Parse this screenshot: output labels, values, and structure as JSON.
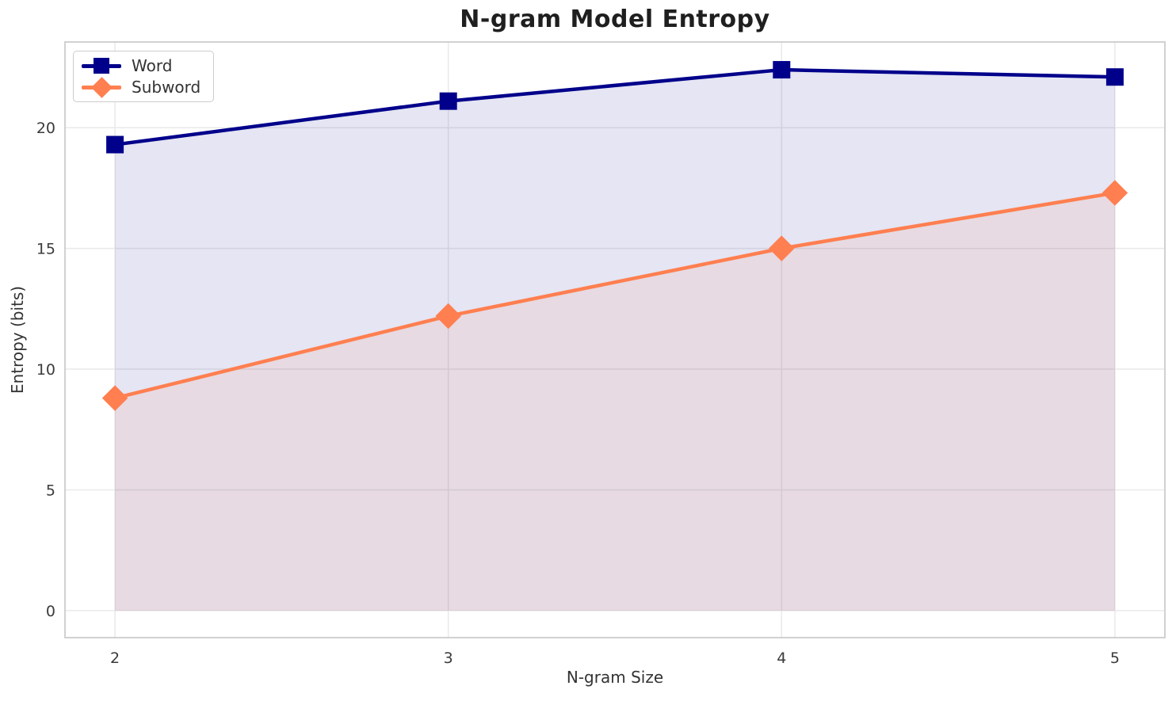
{
  "chart_data": {
    "type": "line",
    "title": "N-gram Model Entropy",
    "xlabel": "N-gram Size",
    "ylabel": "Entropy (bits)",
    "x": [
      2,
      3,
      4,
      5
    ],
    "xticks": [
      2,
      3,
      4,
      5
    ],
    "yticks": [
      0,
      5,
      10,
      15,
      20
    ],
    "xlim": [
      1.85,
      5.15
    ],
    "ylim": [
      -1.12,
      23.55
    ],
    "grid": true,
    "legend_position": "upper-left",
    "background_color": "#ffffff",
    "gridline_color": "#e9e9e9",
    "spine_color": "#cccccc",
    "series": [
      {
        "name": "Word",
        "color": "#00008B",
        "marker": "square",
        "fill_to_zero": true,
        "fill_alpha": 0.1,
        "values": [
          19.3,
          21.1,
          22.4,
          22.1
        ]
      },
      {
        "name": "Subword",
        "color": "#FF7F50",
        "marker": "diamond",
        "fill_to_zero": true,
        "fill_alpha": 0.1,
        "values": [
          8.8,
          12.2,
          15.0,
          17.3
        ]
      }
    ]
  }
}
